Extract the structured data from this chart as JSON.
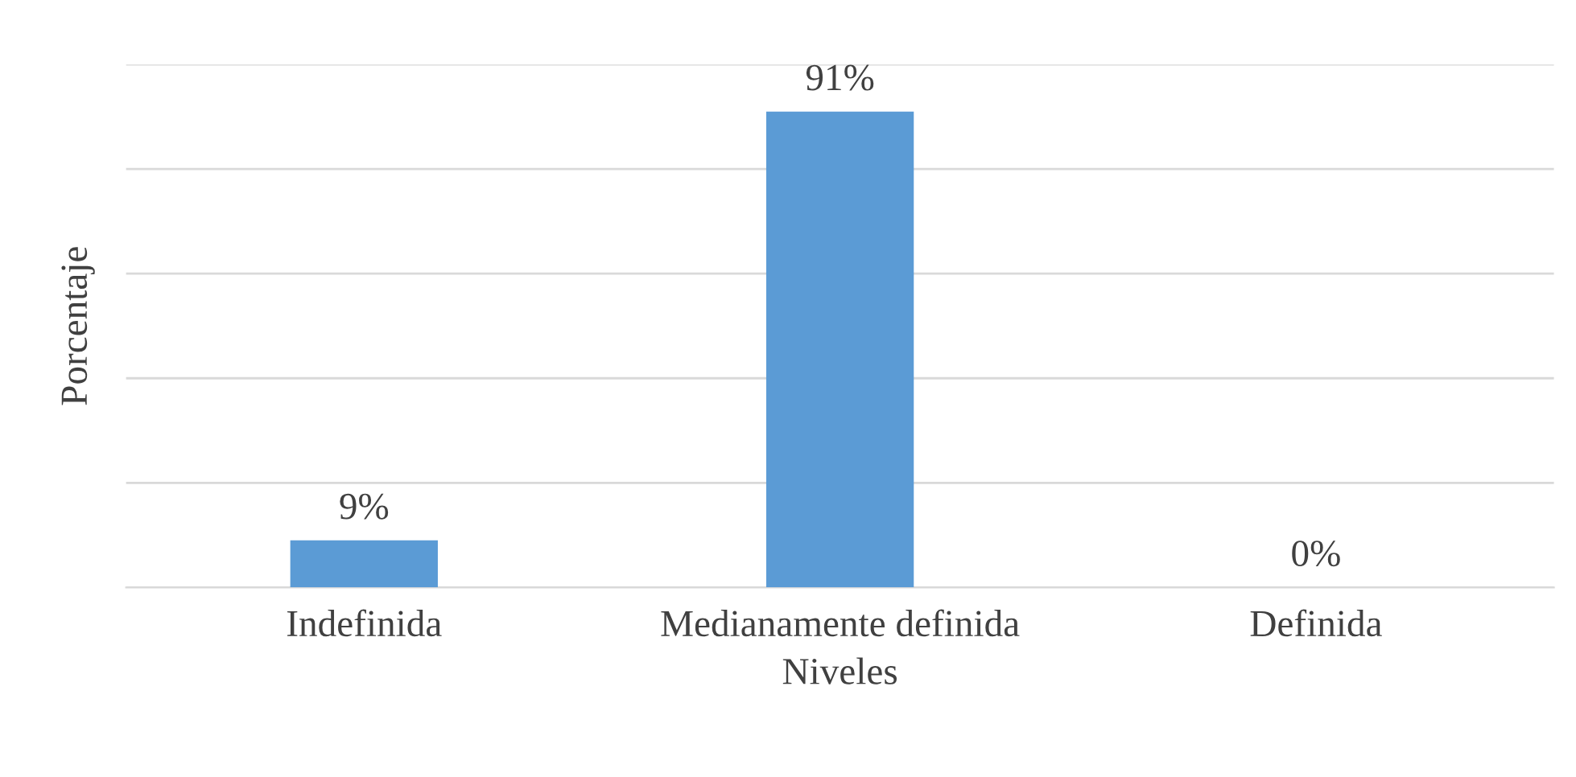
{
  "chart_data": {
    "type": "bar",
    "xlabel": "Niveles",
    "ylabel": "Porcentaje",
    "categories": [
      "Indefinida",
      "Medianamente definida",
      "Definida"
    ],
    "values": [
      9,
      91,
      0
    ],
    "color": "#5b9bd5",
    "value_labels": [
      "9%",
      "91%",
      "0%"
    ],
    "ylim": [
      0,
      100
    ],
    "yticks": [
      {
        "value": 0,
        "label": null
      },
      {
        "value": 20,
        "label": null
      },
      {
        "value": 40,
        "label": null
      },
      {
        "value": 60,
        "label": null
      },
      {
        "value": 80,
        "label": null
      },
      {
        "value": 100,
        "label": null
      }
    ],
    "grid": "y",
    "tick_labels": "x"
  }
}
